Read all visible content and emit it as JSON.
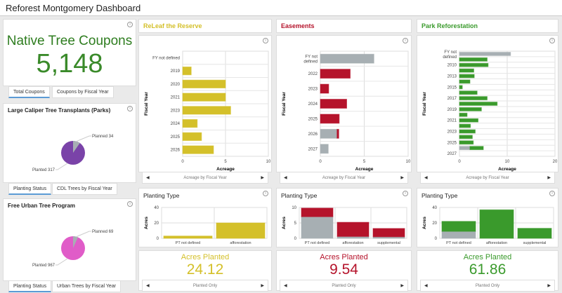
{
  "title": "Reforest Montgomery Dashboard",
  "colors": {
    "releaf": "#d4c02a",
    "easements": "#b5132b",
    "park": "#3a9a2c",
    "gray": "#a7afb3",
    "coupon": "#2e7d1f",
    "caliper": "#7a43a8",
    "urban": "#e05cc8"
  },
  "coupons": {
    "title": "Native Tree Coupons",
    "value": "5,148",
    "tabs": [
      "Total Coupons",
      "Coupons by Fiscal Year"
    ]
  },
  "caliper": {
    "title": "Large Caliper Tree Transplants (Parks)",
    "planned_label": "Planned 34",
    "planted_label": "Planted 317",
    "planned": 34,
    "planted": 317,
    "tabs": [
      "Planting Status",
      "CDL Trees by Fiscal Year"
    ]
  },
  "urban": {
    "title": "Free Urban Tree Program",
    "planned_label": "Planned 69",
    "planted_label": "Planted 967",
    "planned": 69,
    "planted": 967,
    "tabs": [
      "Planting Status",
      "Urban Trees by Fiscal Year"
    ]
  },
  "columns": [
    {
      "key": "releaf",
      "header": "ReLeaf the Reserve",
      "nav": "Acreage by Fiscal Year",
      "acres_title": "Acres Planted",
      "acres": "24.12",
      "acres_nav": "Planted Only",
      "type_title": "Planting Type"
    },
    {
      "key": "easements",
      "header": "Easements",
      "nav": "Acreage by Fiscal Year",
      "acres_title": "Acres Planted",
      "acres": "9.54",
      "acres_nav": "Planted Only",
      "type_title": "Planting Type"
    },
    {
      "key": "park",
      "header": "Park Reforestation",
      "nav": "Acreage by Fiscal Year",
      "acres_title": "Acres Planted",
      "acres": "61.86",
      "acres_nav": "Planted Only",
      "type_title": "Planting Type"
    }
  ],
  "chart_data": [
    {
      "type": "bar",
      "orientation": "horizontal",
      "xlabel": "Acreage",
      "ylabel": "Fiscal Year",
      "xlim": [
        0,
        10
      ],
      "xticks": [
        0,
        5,
        10
      ],
      "grid": true,
      "categories": [
        "FY not defined",
        "2019",
        "2020",
        "2021",
        "2023",
        "2024",
        "2025",
        "2026"
      ],
      "series": [
        {
          "color": "#a7afb3",
          "values": [
            0,
            0,
            0,
            0,
            0,
            0,
            0,
            0
          ]
        },
        {
          "color": "#d4c02a",
          "values": [
            0,
            1.0,
            5.0,
            5.0,
            5.6,
            1.7,
            2.2,
            3.6
          ]
        }
      ]
    },
    {
      "type": "bar",
      "orientation": "horizontal",
      "xlabel": "Acreage",
      "ylabel": "Fiscal Year",
      "xlim": [
        0,
        10
      ],
      "xticks": [
        0,
        5,
        10
      ],
      "grid": true,
      "categories": [
        "FY not defined",
        "2022",
        "2023",
        "2024",
        "2025",
        "2026",
        "2027"
      ],
      "series": [
        {
          "color": "#a7afb3",
          "values": [
            6.1,
            0,
            0,
            0,
            0,
            1.9,
            0.9
          ]
        },
        {
          "color": "#b5132b",
          "values": [
            0,
            3.4,
            0.95,
            3.0,
            2.15,
            0.2,
            0
          ]
        }
      ]
    },
    {
      "type": "bar",
      "orientation": "horizontal",
      "xlabel": "Acreage",
      "ylabel": "Fiscal Year",
      "xlim": [
        0,
        20
      ],
      "xticks": [
        0,
        10,
        20
      ],
      "grid": true,
      "categories": [
        "FY not defined",
        "",
        "2010",
        "",
        "2013",
        "",
        "2015",
        "",
        "2017",
        "",
        "2019",
        "",
        "2021",
        "",
        "2023",
        "",
        "2025",
        "",
        "2027"
      ],
      "series": [
        {
          "color": "#a7afb3",
          "values": [
            10.7,
            0,
            0,
            0,
            0,
            0,
            0,
            0,
            0,
            0,
            0,
            0,
            0,
            0,
            0,
            0,
            0,
            2.2,
            0
          ]
        },
        {
          "color": "#3a9a2c",
          "values": [
            0,
            5.8,
            6.0,
            3.0,
            3.1,
            2.2,
            0.6,
            3.7,
            5.8,
            7.9,
            4.6,
            1.6,
            3.9,
            2.3,
            3.3,
            2.7,
            2.9,
            2.8,
            0
          ]
        }
      ]
    },
    {
      "type": "bar",
      "orientation": "vertical",
      "ylabel": "Acres",
      "ylim": [
        0,
        40
      ],
      "yticks": [
        0,
        20,
        40
      ],
      "grid": true,
      "categories": [
        "PT not defined",
        "afforestation"
      ],
      "series": [
        {
          "color": "#a7afb3",
          "values": [
            0,
            0
          ]
        },
        {
          "color": "#d4c02a",
          "values": [
            3,
            20
          ]
        }
      ]
    },
    {
      "type": "bar",
      "orientation": "vertical",
      "ylabel": "Acres",
      "ylim": [
        0,
        10
      ],
      "yticks": [
        0,
        5,
        10
      ],
      "grid": true,
      "categories": [
        "PT not defined",
        "afforestation",
        "supplemental"
      ],
      "series": [
        {
          "color": "#a7afb3",
          "values": [
            7,
            0.6,
            0.5
          ]
        },
        {
          "color": "#b5132b",
          "values": [
            2.8,
            4.6,
            2.7
          ]
        }
      ]
    },
    {
      "type": "bar",
      "orientation": "vertical",
      "ylabel": "Acres",
      "ylim": [
        0,
        40
      ],
      "yticks": [
        0,
        20,
        40
      ],
      "grid": true,
      "categories": [
        "PT not defined",
        "afforestation",
        "supplemental"
      ],
      "series": [
        {
          "color": "#a7afb3",
          "values": [
            9,
            0,
            0
          ]
        },
        {
          "color": "#3a9a2c",
          "values": [
            13,
            37,
            13
          ]
        }
      ]
    }
  ]
}
